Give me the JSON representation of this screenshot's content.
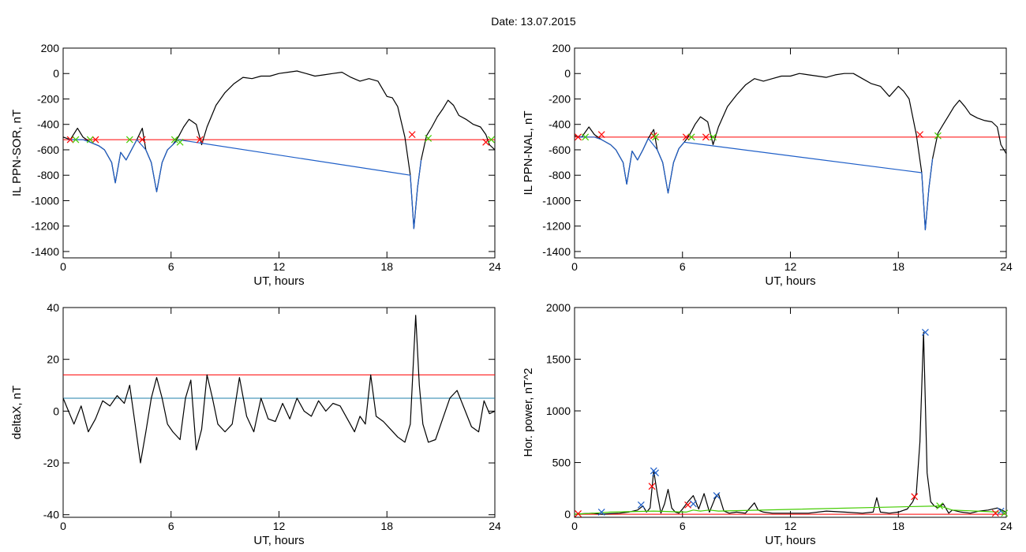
{
  "page": {
    "title": "Date:  13.07.2015"
  },
  "chart_data": [
    {
      "type": "line",
      "ylabel": "IL PPN-SOR, nT",
      "xlabel": "UT, hours",
      "xlim": [
        0,
        24
      ],
      "ylim": [
        -1450,
        200
      ],
      "xticks": [
        0,
        6,
        12,
        18,
        24
      ],
      "yticks": [
        200,
        0,
        -200,
        -400,
        -600,
        -800,
        -1000,
        -1200,
        -1400
      ],
      "series": [
        {
          "color": "#000000",
          "x": [
            0,
            0.4,
            0.8,
            1.1,
            1.5,
            2.0,
            2.3,
            2.7,
            2.9,
            3.2,
            3.5,
            3.8,
            4.1,
            4.4,
            4.6,
            4.9,
            5.2,
            5.5,
            5.8,
            6.1,
            6.4,
            6.7,
            7.0,
            7.4,
            7.7,
            8.0,
            8.5,
            9.0,
            9.5,
            10.0,
            10.5,
            11.0,
            11.5,
            12.0,
            12.5,
            13.0,
            13.5,
            14.0,
            14.5,
            15.0,
            15.5,
            16.0,
            16.5,
            17.0,
            17.5,
            18.0,
            18.3,
            18.6,
            19.0,
            19.3,
            19.5,
            19.7,
            19.9,
            20.2,
            20.5,
            20.8,
            21.1,
            21.4,
            21.7,
            22.0,
            22.4,
            22.8,
            23.2,
            23.5,
            23.7,
            24.0
          ],
          "y": [
            -500,
            -520,
            -430,
            -500,
            -540,
            -570,
            -600,
            -700,
            -860,
            -620,
            -680,
            -600,
            -520,
            -430,
            -600,
            -700,
            -930,
            -700,
            -600,
            -560,
            -500,
            -420,
            -360,
            -400,
            -560,
            -420,
            -250,
            -150,
            -80,
            -30,
            -40,
            -20,
            -20,
            0,
            10,
            20,
            0,
            -20,
            -10,
            0,
            10,
            -30,
            -60,
            -40,
            -60,
            -180,
            -190,
            -260,
            -500,
            -800,
            -1220,
            -900,
            -680,
            -490,
            -420,
            -340,
            -280,
            -210,
            -250,
            -330,
            -360,
            -400,
            -420,
            -480,
            -560,
            -600
          ]
        },
        {
          "color": "#1f5fc8",
          "x": [
            0.3,
            1.1,
            1.5,
            2.0,
            2.3,
            2.7,
            2.9,
            3.2,
            3.5,
            3.8,
            4.1,
            4.6,
            4.9,
            5.2,
            5.5,
            5.8,
            6.1,
            6.4,
            19.3,
            19.5,
            19.7,
            19.9
          ],
          "y": [
            -520,
            -520,
            -540,
            -570,
            -600,
            -700,
            -860,
            -620,
            -680,
            -600,
            -520,
            -600,
            -700,
            -930,
            -700,
            -600,
            -560,
            -520,
            -800,
            -1220,
            -900,
            -680
          ]
        }
      ],
      "threshold": {
        "value": -520,
        "color": "#ff0000"
      },
      "markers": [
        {
          "x": 0.4,
          "y": -520,
          "color": "#ff0000"
        },
        {
          "x": 1.8,
          "y": -520,
          "color": "#ff0000"
        },
        {
          "x": 4.4,
          "y": -520,
          "color": "#ff0000"
        },
        {
          "x": 7.6,
          "y": -520,
          "color": "#ff0000"
        },
        {
          "x": 19.4,
          "y": -480,
          "color": "#ff0000"
        },
        {
          "x": 23.5,
          "y": -540,
          "color": "#ff0000"
        },
        {
          "x": 0.7,
          "y": -520,
          "color": "#44cc00"
        },
        {
          "x": 1.5,
          "y": -520,
          "color": "#44cc00"
        },
        {
          "x": 3.7,
          "y": -520,
          "color": "#44cc00"
        },
        {
          "x": 6.2,
          "y": -520,
          "color": "#44cc00"
        },
        {
          "x": 6.5,
          "y": -540,
          "color": "#44cc00"
        },
        {
          "x": 20.3,
          "y": -510,
          "color": "#44cc00"
        },
        {
          "x": 23.8,
          "y": -520,
          "color": "#44cc00"
        }
      ]
    },
    {
      "type": "line",
      "ylabel": "IL PPN-NAL, nT",
      "xlabel": "UT, hours",
      "xlim": [
        0,
        24
      ],
      "ylim": [
        -1450,
        200
      ],
      "xticks": [
        0,
        6,
        12,
        18,
        24
      ],
      "yticks": [
        200,
        0,
        -200,
        -400,
        -600,
        -800,
        -1000,
        -1200,
        -1400
      ],
      "series": [
        {
          "color": "#000000",
          "x": [
            0,
            0.4,
            0.8,
            1.1,
            1.5,
            2.0,
            2.3,
            2.7,
            2.9,
            3.2,
            3.5,
            3.8,
            4.1,
            4.4,
            4.6,
            4.9,
            5.2,
            5.5,
            5.8,
            6.1,
            6.4,
            6.7,
            7.0,
            7.4,
            7.7,
            8.0,
            8.5,
            9.0,
            9.5,
            10.0,
            10.5,
            11.0,
            11.5,
            12.0,
            12.5,
            13.0,
            13.5,
            14.0,
            14.5,
            15.0,
            15.5,
            16.0,
            16.5,
            17.0,
            17.5,
            18.0,
            18.3,
            18.6,
            19.0,
            19.3,
            19.5,
            19.7,
            19.9,
            20.2,
            20.5,
            20.8,
            21.1,
            21.4,
            21.7,
            22.0,
            22.4,
            22.8,
            23.2,
            23.5,
            23.7,
            24.0
          ],
          "y": [
            -490,
            -500,
            -420,
            -480,
            -520,
            -560,
            -600,
            -700,
            -870,
            -610,
            -680,
            -600,
            -510,
            -440,
            -600,
            -700,
            -940,
            -700,
            -590,
            -540,
            -480,
            -400,
            -340,
            -380,
            -560,
            -420,
            -260,
            -170,
            -90,
            -40,
            -60,
            -40,
            -20,
            -20,
            0,
            -10,
            -20,
            -30,
            -10,
            0,
            0,
            -40,
            -80,
            -100,
            -180,
            -100,
            -140,
            -200,
            -480,
            -780,
            -1230,
            -900,
            -670,
            -470,
            -400,
            -330,
            -260,
            -210,
            -260,
            -320,
            -350,
            -370,
            -380,
            -420,
            -560,
            -630
          ]
        },
        {
          "color": "#1f5fc8",
          "x": [
            0.2,
            1.1,
            1.5,
            2.0,
            2.3,
            2.7,
            2.9,
            3.2,
            3.5,
            3.8,
            4.1,
            4.6,
            4.9,
            5.2,
            5.5,
            5.8,
            6.1,
            19.3,
            19.5,
            19.7,
            19.9
          ],
          "y": [
            -500,
            -500,
            -520,
            -560,
            -600,
            -700,
            -870,
            -610,
            -680,
            -600,
            -510,
            -600,
            -700,
            -940,
            -700,
            -590,
            -540,
            -780,
            -1230,
            -900,
            -670
          ]
        }
      ],
      "threshold": {
        "value": -500,
        "color": "#ff0000"
      },
      "markers": [
        {
          "x": 0.2,
          "y": -500,
          "color": "#ff0000"
        },
        {
          "x": 1.5,
          "y": -480,
          "color": "#ff0000"
        },
        {
          "x": 4.4,
          "y": -490,
          "color": "#ff0000"
        },
        {
          "x": 6.2,
          "y": -500,
          "color": "#ff0000"
        },
        {
          "x": 7.3,
          "y": -500,
          "color": "#ff0000"
        },
        {
          "x": 19.2,
          "y": -480,
          "color": "#ff0000"
        },
        {
          "x": 0.6,
          "y": -500,
          "color": "#44cc00"
        },
        {
          "x": 4.5,
          "y": -500,
          "color": "#44cc00"
        },
        {
          "x": 6.5,
          "y": -500,
          "color": "#44cc00"
        },
        {
          "x": 7.7,
          "y": -500,
          "color": "#44cc00"
        },
        {
          "x": 20.2,
          "y": -490,
          "color": "#44cc00"
        }
      ]
    },
    {
      "type": "line",
      "ylabel": "deltaX, nT",
      "xlabel": "UT, hours",
      "xlim": [
        0,
        24
      ],
      "ylim": [
        -41,
        40
      ],
      "xticks": [
        0,
        6,
        12,
        18,
        24
      ],
      "yticks": [
        40,
        20,
        0,
        -20,
        -40
      ],
      "series": [
        {
          "color": "#000000",
          "x": [
            0,
            0.3,
            0.6,
            1.0,
            1.4,
            1.8,
            2.2,
            2.6,
            3.0,
            3.4,
            3.7,
            4.0,
            4.3,
            4.6,
            4.9,
            5.2,
            5.5,
            5.8,
            6.1,
            6.5,
            6.8,
            7.1,
            7.4,
            7.7,
            8.0,
            8.3,
            8.6,
            9.0,
            9.4,
            9.8,
            10.2,
            10.6,
            11.0,
            11.4,
            11.8,
            12.2,
            12.6,
            13.0,
            13.4,
            13.8,
            14.2,
            14.6,
            15.0,
            15.4,
            15.8,
            16.2,
            16.5,
            16.8,
            17.1,
            17.4,
            17.8,
            18.2,
            18.6,
            19.0,
            19.3,
            19.6,
            19.8,
            20.0,
            20.3,
            20.7,
            21.1,
            21.5,
            21.9,
            22.3,
            22.7,
            23.1,
            23.4,
            23.7,
            24.0
          ],
          "y": [
            5,
            0,
            -5,
            2,
            -8,
            -3,
            4,
            2,
            6,
            3,
            10,
            -5,
            -20,
            -8,
            5,
            13,
            5,
            -5,
            -8,
            -11,
            5,
            12,
            -15,
            -7,
            14,
            5,
            -5,
            -8,
            -5,
            13,
            -2,
            -8,
            5,
            -3,
            -4,
            3,
            -3,
            5,
            0,
            -2,
            4,
            0,
            3,
            2,
            -3,
            -8,
            -2,
            -5,
            14,
            -2,
            -4,
            -7,
            -10,
            -12,
            -5,
            37,
            10,
            -5,
            -12,
            -11,
            -3,
            5,
            8,
            1,
            -6,
            -8,
            4,
            -1,
            0
          ]
        }
      ],
      "thresholds": [
        {
          "value": 14,
          "color": "#ff0000"
        },
        {
          "value": 5,
          "color": "#1f7fa8"
        }
      ]
    },
    {
      "type": "line",
      "ylabel": "Hor. power, nT^2",
      "xlabel": "UT, hours",
      "xlim": [
        0,
        24
      ],
      "ylim": [
        -30,
        2000
      ],
      "xticks": [
        0,
        6,
        12,
        18,
        24
      ],
      "yticks": [
        2000,
        1500,
        1000,
        500,
        0
      ],
      "series": [
        {
          "color": "#000000",
          "x": [
            0,
            0.5,
            1.0,
            1.5,
            2.0,
            2.5,
            3.0,
            3.5,
            3.8,
            4.0,
            4.2,
            4.4,
            4.6,
            4.8,
            5.0,
            5.2,
            5.4,
            5.6,
            5.8,
            6.0,
            6.3,
            6.6,
            6.9,
            7.2,
            7.5,
            7.8,
            8.0,
            8.3,
            8.6,
            9.0,
            9.5,
            10.0,
            10.2,
            10.5,
            11.0,
            12.0,
            13.0,
            14.0,
            15.0,
            16.0,
            16.6,
            16.8,
            17.0,
            17.5,
            18.0,
            18.5,
            18.8,
            19.0,
            19.2,
            19.4,
            19.6,
            19.8,
            20.0,
            20.2,
            20.5,
            20.8,
            21.0,
            21.5,
            22.0,
            22.5,
            23.0,
            23.5,
            24.0
          ],
          "y": [
            0,
            5,
            10,
            0,
            5,
            10,
            20,
            40,
            80,
            20,
            60,
            420,
            200,
            10,
            100,
            240,
            60,
            20,
            10,
            50,
            120,
            180,
            50,
            200,
            20,
            150,
            200,
            30,
            10,
            20,
            10,
            110,
            40,
            20,
            10,
            10,
            10,
            30,
            20,
            10,
            20,
            160,
            20,
            10,
            20,
            50,
            120,
            200,
            700,
            1760,
            400,
            120,
            80,
            60,
            100,
            10,
            40,
            20,
            10,
            30,
            40,
            60,
            20
          ]
        },
        {
          "color": "#44cc00",
          "x": [
            0,
            1.0,
            2.0,
            4.4,
            6.2,
            6.6,
            7.0,
            7.5,
            8.0,
            20.3,
            21.0,
            23.6
          ],
          "y": [
            0,
            10,
            20,
            30,
            20,
            40,
            30,
            40,
            30,
            80,
            40,
            20
          ]
        }
      ],
      "threshold": {
        "value": 0,
        "color": "#ff0000"
      },
      "markers": [
        {
          "x": 0.2,
          "y": 5,
          "color": "#ff0000"
        },
        {
          "x": 4.3,
          "y": 270,
          "color": "#ff0000"
        },
        {
          "x": 6.3,
          "y": 90,
          "color": "#ff0000"
        },
        {
          "x": 18.9,
          "y": 170,
          "color": "#ff0000"
        },
        {
          "x": 23.4,
          "y": 10,
          "color": "#ff0000"
        },
        {
          "x": 1.5,
          "y": 20,
          "color": "#1f5fc8"
        },
        {
          "x": 3.7,
          "y": 90,
          "color": "#1f5fc8"
        },
        {
          "x": 4.4,
          "y": 420,
          "color": "#1f5fc8"
        },
        {
          "x": 4.5,
          "y": 400,
          "color": "#1f5fc8"
        },
        {
          "x": 6.6,
          "y": 100,
          "color": "#1f5fc8"
        },
        {
          "x": 7.9,
          "y": 180,
          "color": "#1f5fc8"
        },
        {
          "x": 19.5,
          "y": 1760,
          "color": "#1f5fc8"
        },
        {
          "x": 23.7,
          "y": 30,
          "color": "#1f5fc8"
        },
        {
          "x": 20.3,
          "y": 80,
          "color": "#44cc00"
        },
        {
          "x": 23.9,
          "y": 10,
          "color": "#44cc00"
        }
      ]
    }
  ]
}
